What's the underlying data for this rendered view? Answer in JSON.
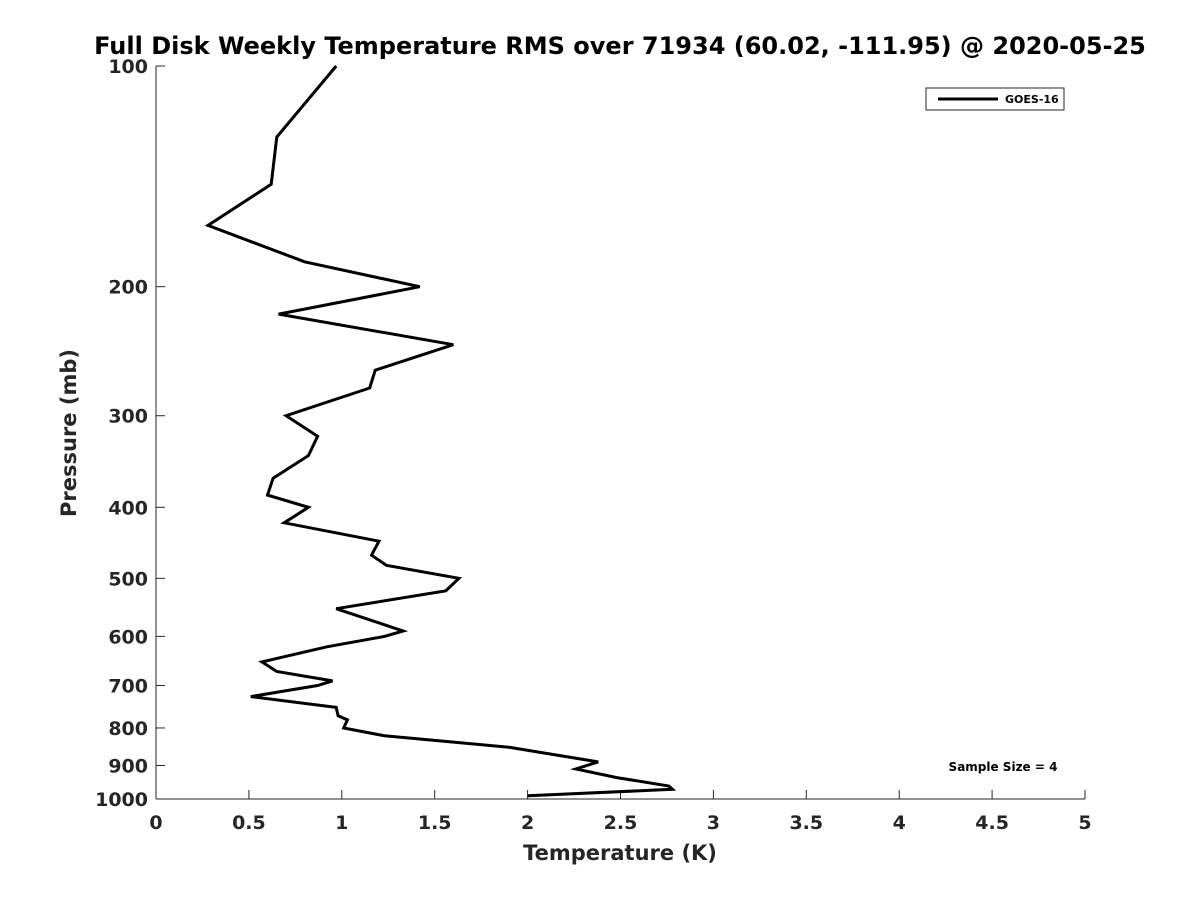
{
  "chart_data": {
    "type": "line",
    "title": "Full Disk Weekly Temperature RMS over 71934 (60.02, -111.95) @ 2020-05-25",
    "xlabel": "Temperature (K)",
    "ylabel": "Pressure (mb)",
    "xlim": [
      0,
      5
    ],
    "ylim": [
      100,
      1000
    ],
    "yscale": "log",
    "yreversed": true,
    "xticks": [
      "0",
      "0.5",
      "1",
      "1.5",
      "2",
      "2.5",
      "3",
      "3.5",
      "4",
      "4.5",
      "5"
    ],
    "yticks": [
      "100",
      "200",
      "300",
      "400",
      "500",
      "600",
      "700",
      "800",
      "900",
      "1000"
    ],
    "grid": false,
    "legend": {
      "placement": "top-right",
      "entries": [
        "GOES-16"
      ]
    },
    "annotation": "Sample Size = 4",
    "series": [
      {
        "name": "GOES-16",
        "color": "#000000",
        "points": [
          [
            0.97,
            100
          ],
          [
            0.65,
            125
          ],
          [
            0.62,
            145
          ],
          [
            0.28,
            165
          ],
          [
            0.8,
            185
          ],
          [
            1.42,
            200
          ],
          [
            0.66,
            218
          ],
          [
            1.6,
            240
          ],
          [
            1.18,
            260
          ],
          [
            1.15,
            275
          ],
          [
            0.7,
            300
          ],
          [
            0.87,
            320
          ],
          [
            0.82,
            340
          ],
          [
            0.63,
            365
          ],
          [
            0.6,
            385
          ],
          [
            0.82,
            400
          ],
          [
            0.69,
            420
          ],
          [
            1.2,
            445
          ],
          [
            1.16,
            465
          ],
          [
            1.24,
            480
          ],
          [
            1.63,
            500
          ],
          [
            1.56,
            520
          ],
          [
            0.97,
            550
          ],
          [
            1.33,
            590
          ],
          [
            1.23,
            600
          ],
          [
            0.92,
            620
          ],
          [
            0.57,
            650
          ],
          [
            0.65,
            670
          ],
          [
            0.95,
            690
          ],
          [
            0.87,
            700
          ],
          [
            0.51,
            725
          ],
          [
            0.97,
            750
          ],
          [
            0.98,
            770
          ],
          [
            1.03,
            780
          ],
          [
            1.01,
            800
          ],
          [
            1.23,
            820
          ],
          [
            1.9,
            850
          ],
          [
            2.38,
            890
          ],
          [
            2.26,
            910
          ],
          [
            2.48,
            935
          ],
          [
            2.76,
            960
          ],
          [
            2.78,
            970
          ],
          [
            2.0,
            990
          ]
        ]
      }
    ]
  }
}
